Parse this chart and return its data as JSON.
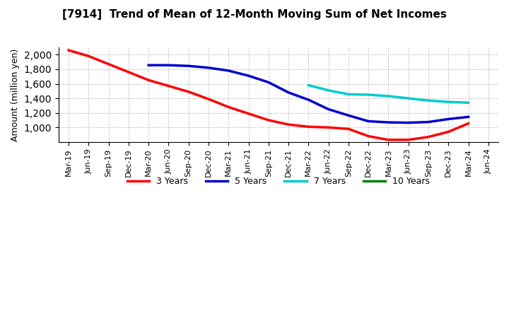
{
  "title": "[7914]  Trend of Mean of 12-Month Moving Sum of Net Incomes",
  "ylabel": "Amount (million yen)",
  "background_color": "#ffffff",
  "plot_bg_color": "#ffffff",
  "grid_color": "#aaaaaa",
  "ylim": [
    800,
    2100
  ],
  "yticks": [
    1000,
    1200,
    1400,
    1600,
    1800,
    2000
  ],
  "series": {
    "3 Years": {
      "color": "#ff0000",
      "dates": [
        "Mar-19",
        "Jun-19",
        "Sep-19",
        "Dec-19",
        "Mar-20",
        "Jun-20",
        "Sep-20",
        "Dec-20",
        "Mar-21",
        "Jun-21",
        "Sep-21",
        "Dec-21",
        "Mar-22",
        "Jun-22",
        "Sep-22",
        "Dec-22",
        "Mar-23",
        "Jun-23",
        "Sep-23",
        "Dec-23",
        "Mar-24"
      ],
      "values": [
        2060,
        1980,
        1870,
        1760,
        1650,
        1570,
        1490,
        1390,
        1280,
        1190,
        1100,
        1040,
        1010,
        1000,
        980,
        880,
        830,
        830,
        870,
        940,
        1055
      ]
    },
    "5 Years": {
      "color": "#0000cc",
      "dates": [
        "Mar-20",
        "Jun-20",
        "Sep-20",
        "Dec-20",
        "Mar-21",
        "Jun-21",
        "Sep-21",
        "Dec-21",
        "Mar-22",
        "Jun-22",
        "Sep-22",
        "Dec-22",
        "Mar-23",
        "Jun-23",
        "Sep-23",
        "Dec-23",
        "Mar-24"
      ],
      "values": [
        1855,
        1855,
        1845,
        1820,
        1780,
        1710,
        1620,
        1480,
        1380,
        1250,
        1165,
        1085,
        1070,
        1065,
        1075,
        1115,
        1145
      ]
    },
    "7 Years": {
      "color": "#00cccc",
      "dates": [
        "Mar-22",
        "Jun-22",
        "Sep-22",
        "Dec-22",
        "Mar-23",
        "Jun-23",
        "Sep-23",
        "Dec-23",
        "Mar-24"
      ],
      "values": [
        1580,
        1510,
        1455,
        1450,
        1430,
        1400,
        1370,
        1350,
        1340
      ]
    },
    "10 Years": {
      "color": "#008000",
      "dates": [],
      "values": []
    }
  },
  "legend_order": [
    "3 Years",
    "5 Years",
    "7 Years",
    "10 Years"
  ],
  "xtick_labels": [
    "Mar-19",
    "Jun-19",
    "Sep-19",
    "Dec-19",
    "Mar-20",
    "Jun-20",
    "Sep-20",
    "Dec-20",
    "Mar-21",
    "Jun-21",
    "Sep-21",
    "Dec-21",
    "Mar-22",
    "Jun-22",
    "Sep-22",
    "Dec-22",
    "Mar-23",
    "Jun-23",
    "Sep-23",
    "Dec-23",
    "Mar-24",
    "Jun-24"
  ]
}
